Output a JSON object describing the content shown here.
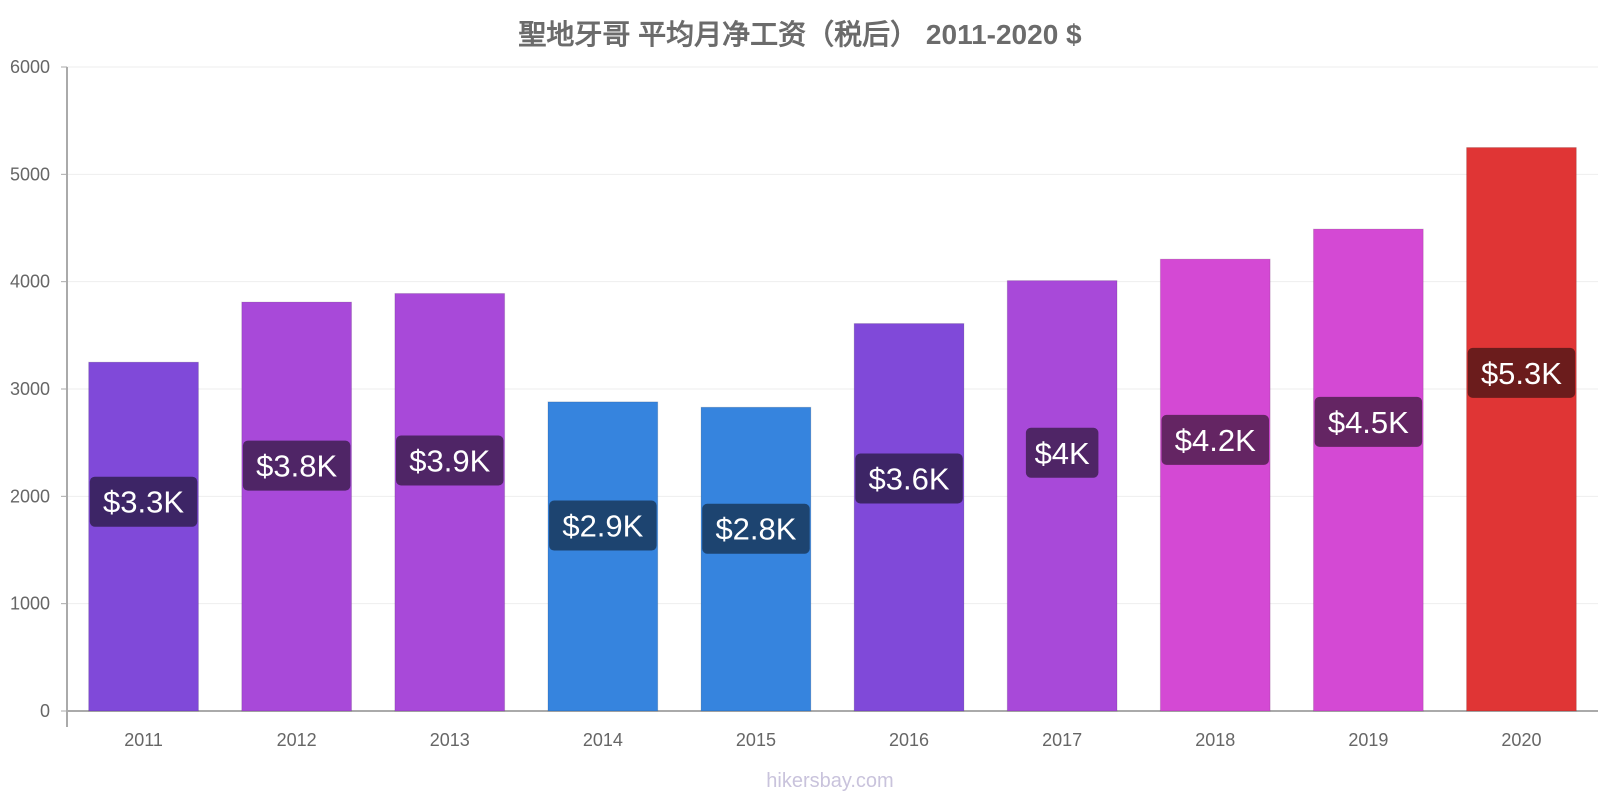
{
  "chart_data": {
    "type": "bar",
    "title": "聖地牙哥 平均月净工资（税后） 2011-2020 $",
    "xlabel": "",
    "ylabel": "",
    "categories": [
      "2011",
      "2012",
      "2013",
      "2014",
      "2015",
      "2016",
      "2017",
      "2018",
      "2019",
      "2020"
    ],
    "values": [
      3250,
      3810,
      3890,
      2880,
      2830,
      3610,
      4010,
      4210,
      4490,
      5250
    ],
    "data_labels": [
      "$3.3K",
      "$3.8K",
      "$3.9K",
      "$2.9K",
      "$2.8K",
      "$3.6K",
      "$4K",
      "$4.2K",
      "$4.5K",
      "$5.3K"
    ],
    "bar_colors": [
      "#8049d9",
      "#a849d9",
      "#a849d9",
      "#3684de",
      "#3684de",
      "#8049d9",
      "#a849d9",
      "#d449d4",
      "#d449d4",
      "#e03535"
    ],
    "label_bg_colors": [
      "#3d2566",
      "#4f2566",
      "#4f2566",
      "#1d4470",
      "#1d4470",
      "#3d2566",
      "#4f2566",
      "#642563",
      "#642563",
      "#6b1c1c"
    ],
    "ylim": [
      0,
      6000
    ],
    "yticks": [
      "0",
      "1000",
      "2000",
      "3000",
      "4000",
      "5000",
      "6000"
    ],
    "grid": true,
    "legend": "none"
  },
  "watermark": "hikersbay.com"
}
